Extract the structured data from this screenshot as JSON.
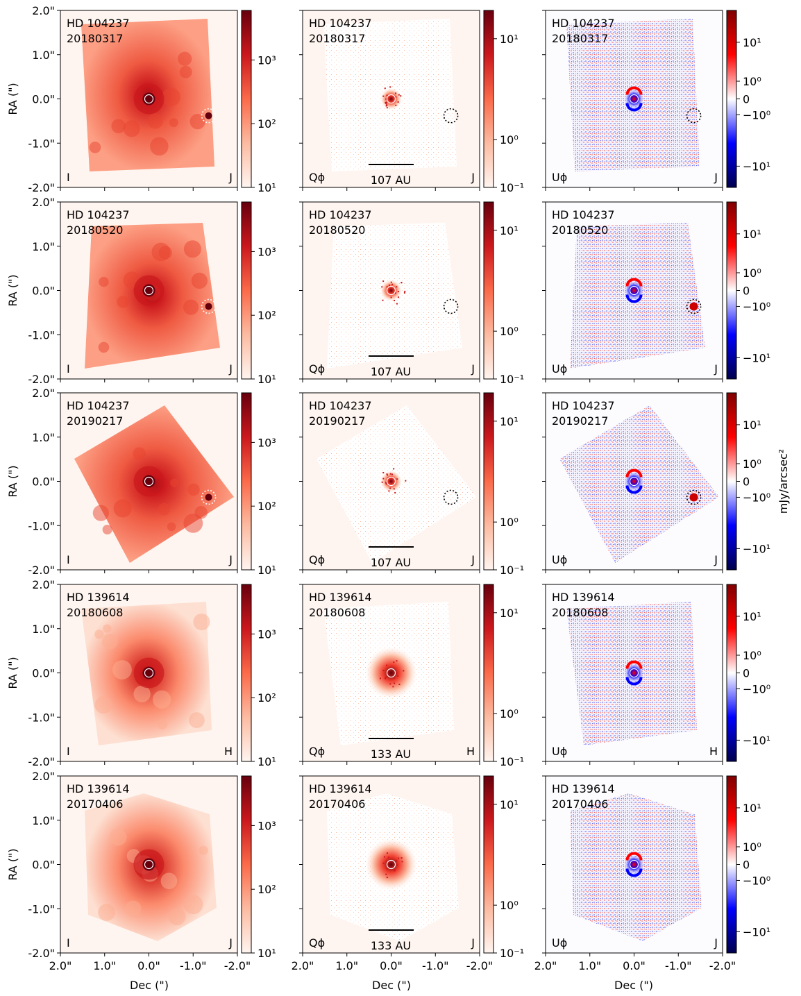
{
  "chart_data": {
    "type": "heatmap",
    "title": "",
    "x_axis": {
      "label": "Dec (\")",
      "ticks": [
        "2.0\"",
        "1.0\"",
        "0.0\"",
        "-1.0\"",
        "-2.0\""
      ],
      "range": [
        2.0,
        -2.0
      ]
    },
    "y_axis": {
      "label": "RA (\")",
      "ticks": [
        "2.0\"",
        "1.0\"",
        "0.0\"",
        "-1.0\"",
        "-2.0\""
      ],
      "range": [
        -2.0,
        2.0
      ]
    },
    "columns": [
      {
        "stokes": "I",
        "cmap": "Reds",
        "colorbar": {
          "scale": "log",
          "range": [
            10,
            5000
          ],
          "ticks": [
            "10¹",
            "10²",
            "10³"
          ]
        }
      },
      {
        "stokes": "Qϕ",
        "cmap": "Reds",
        "colorbar": {
          "scale": "log",
          "range": [
            0.1,
            25
          ],
          "ticks": [
            "10⁻¹",
            "10⁰",
            "10¹"
          ]
        }
      },
      {
        "stokes": "Uϕ",
        "cmap": "seismic",
        "colorbar": {
          "scale": "symlog",
          "range": [
            -25,
            25
          ],
          "ticks": [
            "10¹",
            "10⁰",
            "0",
            "−10⁰",
            "−10¹"
          ],
          "label": "mJy/arcsec²"
        }
      }
    ],
    "rows": [
      {
        "target": "HD 104237",
        "date": "20180317",
        "band": "J",
        "scalebar": "107 AU",
        "companion": {
          "dec": -1.35,
          "ra": -0.38
        }
      },
      {
        "target": "HD 104237",
        "date": "20180520",
        "band": "J",
        "scalebar": "107 AU",
        "companion": {
          "dec": -1.35,
          "ra": -0.36
        }
      },
      {
        "target": "HD 104237",
        "date": "20190217",
        "band": "J",
        "scalebar": "107 AU",
        "companion": {
          "dec": -1.35,
          "ra": -0.36
        }
      },
      {
        "target": "HD 139614",
        "date": "20180608",
        "band": "H",
        "scalebar": "133 AU",
        "companion": null
      },
      {
        "target": "HD 139614",
        "date": "20170406",
        "band": "J",
        "scalebar": "133 AU",
        "companion": null
      }
    ]
  }
}
